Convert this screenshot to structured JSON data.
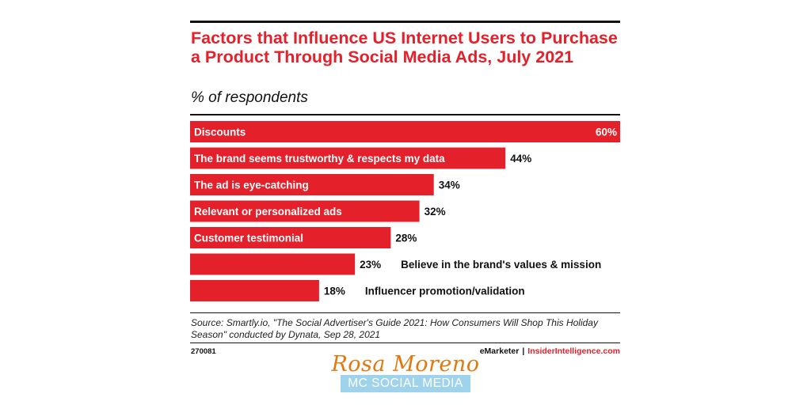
{
  "chart_data": {
    "type": "bar",
    "orientation": "horizontal",
    "title": "Factors that Influence US Internet Users to Purchase a Product Through Social Media Ads, July 2021",
    "subtitle": "% of respondents",
    "categories": [
      "Discounts",
      "The brand seems trustworthy & respects my data",
      "The ad is eye-catching",
      "Relevant or personalized ads",
      "Customer testimonial",
      "Believe in the brand's values & mission",
      "Influencer promotion/validation"
    ],
    "values": [
      60,
      44,
      34,
      32,
      28,
      23,
      18
    ],
    "value_labels": [
      "60%",
      "44%",
      "34%",
      "32%",
      "28%",
      "23%",
      "18%"
    ],
    "xlim": [
      0,
      60
    ],
    "grid": false,
    "bar_color": "#e4202a"
  },
  "source": "Source: Smartly.io, \"The Social Advertiser's Guide 2021: How Consumers Will Shop This Holiday Season\" conducted by Dynata, Sep 28, 2021",
  "chart_id": "270081",
  "brand": {
    "emarketer": "eMarketer",
    "separator": "|",
    "insider": "InsiderIntelligence.com"
  },
  "watermark": {
    "name": "Rosa Moreno",
    "company": "MC SOCIAL MEDIA"
  },
  "colors": {
    "accent": "#e4202a",
    "watermark_name": "#e07a10",
    "watermark_box": "#9fd3ec"
  }
}
